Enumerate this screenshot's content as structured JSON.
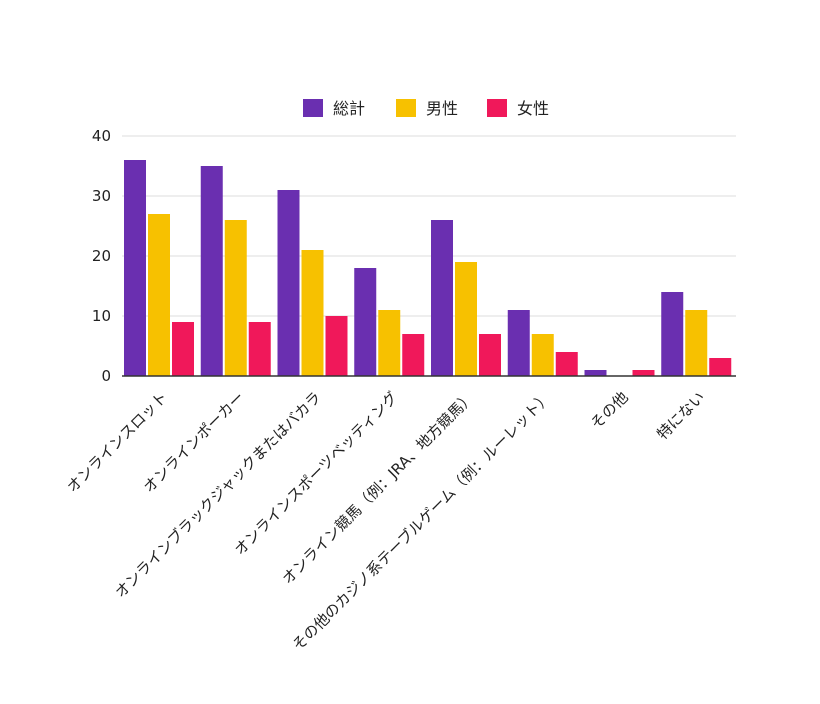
{
  "chart_data": {
    "type": "bar",
    "title": "",
    "xlabel": "",
    "ylabel": "",
    "ylim": [
      0,
      40
    ],
    "yticks": [
      0,
      10,
      20,
      30,
      40
    ],
    "grid": true,
    "legend_position": "top-center",
    "categories": [
      "オンラインスロット",
      "オンラインポーカー",
      "オンラインブラックジャックまたはバカラ",
      "オンラインスポーツベッティング",
      "オンライン競馬（例：JRA、地方競馬）",
      "その他のカジノ系テーブルゲーム（例：ルーレット）",
      "その他",
      "特にない"
    ],
    "series": [
      {
        "name": "総計",
        "color": "#6a2fb0",
        "values": [
          36,
          35,
          31,
          18,
          26,
          11,
          1,
          14
        ]
      },
      {
        "name": "男性",
        "color": "#f7c100",
        "values": [
          27,
          26,
          21,
          11,
          19,
          7,
          0,
          11
        ]
      },
      {
        "name": "女性",
        "color": "#f0185a",
        "values": [
          9,
          9,
          10,
          7,
          7,
          4,
          1,
          3
        ]
      }
    ]
  }
}
